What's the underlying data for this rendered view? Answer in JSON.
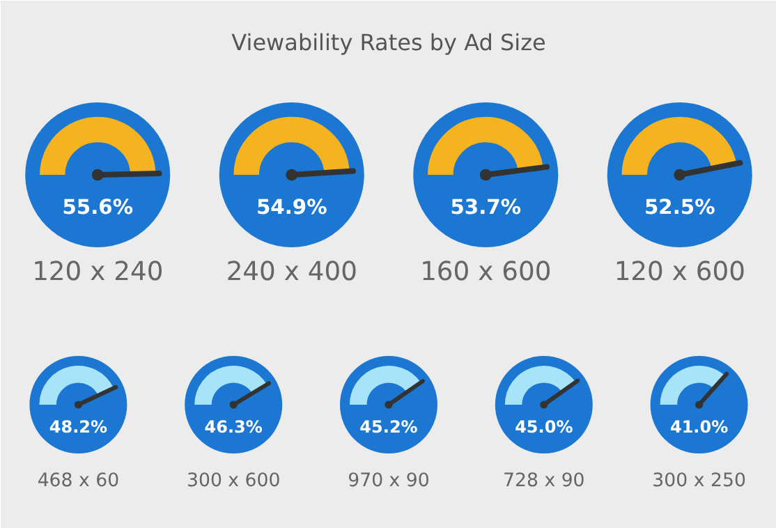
{
  "chart_data": {
    "type": "other",
    "title": "Viewability Rates by Ad Size",
    "categories": [
      "120 x 240",
      "240 x 400",
      "160 x 600",
      "120 x 600",
      "468 x 60",
      "300 x 600",
      "970 x 90",
      "728 x 90",
      "300 x 250"
    ],
    "values": [
      55.6,
      54.9,
      53.7,
      52.5,
      48.2,
      46.3,
      45.2,
      45.0,
      41.0
    ],
    "value_labels": [
      "55.6%",
      "54.9%",
      "53.7%",
      "52.5%",
      "48.2%",
      "46.3%",
      "45.2%",
      "45.0%",
      "41.0%"
    ],
    "colors": [
      "#1b77d2",
      "#1b77d2",
      "#1b77d2",
      "#1b77d2",
      "#1b77d2",
      "#1b77d2",
      "#1b77d2",
      "#1b77d2",
      "#1b77d2"
    ]
  }
}
